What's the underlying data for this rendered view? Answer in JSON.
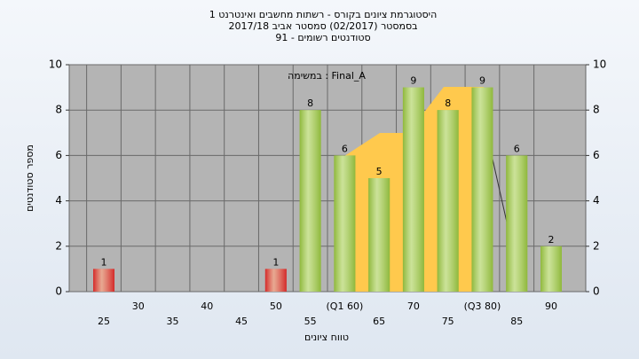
{
  "chart_data": {
    "type": "bar",
    "title_lines": [
      "היסטוגרמת ציונים בקורס - רשתות מחשבים ואינטרנט 1",
      "בסמסטר  (02/2017)  סמסטר אביב 2017/18",
      "סטודנטים רשומים - 91"
    ],
    "annotation": "במשימה : Final_A",
    "y_label": "מספר סטודנטים",
    "x_label": "טווח ציונים",
    "categories": [
      "25",
      "30",
      "35",
      "40",
      "45",
      "50",
      "55",
      "(Q1 60)",
      "65",
      "70",
      "75",
      "(Q3 80)",
      "85",
      "90"
    ],
    "values": [
      1,
      0,
      0,
      0,
      0,
      1,
      8,
      6,
      5,
      9,
      8,
      9,
      6,
      2
    ],
    "colors": [
      "#d42a2a",
      "#d42a2a",
      "#d42a2a",
      "#d42a2a",
      "#d42a2a",
      "#d42a2a",
      "#8fb83c",
      "#8fb83c",
      "#8fb83c",
      "#8fb83c",
      "#8fb83c",
      "#8fb83c",
      "#8fb83c",
      "#8fb83c"
    ],
    "ylim": [
      0,
      10
    ],
    "yticks": [
      0,
      2,
      4,
      6,
      8,
      10
    ],
    "grid": true
  }
}
